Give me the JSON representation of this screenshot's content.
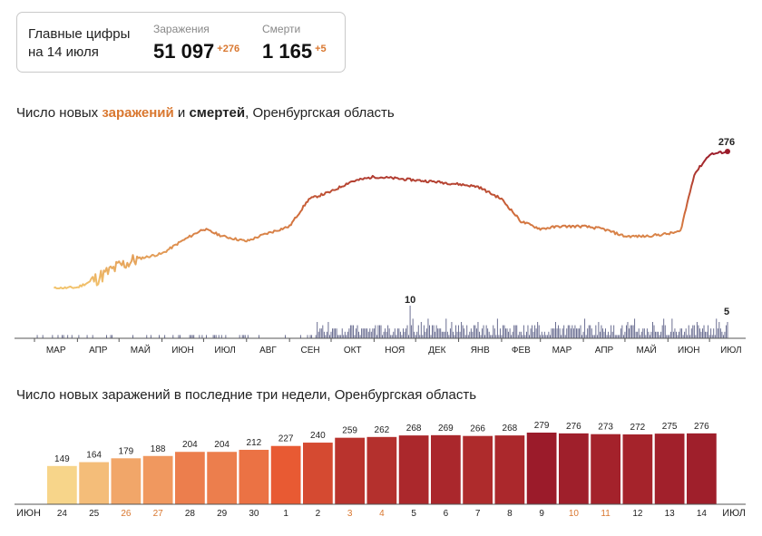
{
  "summary": {
    "label_line1": "Главные цифры",
    "label_line2": "на 14 июля",
    "infections": {
      "caption": "Заражения",
      "value": "51 097",
      "delta": "+276"
    },
    "deaths": {
      "caption": "Смерти",
      "value": "1 165",
      "delta": "+5"
    }
  },
  "colors": {
    "infection_accent": "#d9772f",
    "death_bars": "#5b5f86",
    "bar_gradient_low": "#f7d58a",
    "bar_gradient_mid": "#e85a33",
    "bar_gradient_high": "#9b1b2a",
    "weekend_label": "#d9772f"
  },
  "chart1": {
    "title_prefix": "Число новых ",
    "title_infections": "заражений",
    "title_and": " и ",
    "title_deaths": "смертей",
    "title_suffix": ", Оренбургская область"
  },
  "chart2": {
    "title": "Число новых заражений в последние три недели, Оренбургская область"
  },
  "chart_data": [
    {
      "type": "line",
      "series": [
        {
          "name": "заражений",
          "x": [
            "2020-03-15",
            "2020-04-01",
            "2020-04-15",
            "2020-05-01",
            "2020-05-15",
            "2020-06-01",
            "2020-06-15",
            "2020-07-01",
            "2020-07-15",
            "2020-08-01",
            "2020-08-15",
            "2020-09-01",
            "2020-09-15",
            "2020-10-01",
            "2020-10-15",
            "2020-11-01",
            "2020-11-15",
            "2020-12-01",
            "2020-12-15",
            "2021-01-01",
            "2021-01-15",
            "2021-02-01",
            "2021-02-15",
            "2021-03-01",
            "2021-03-15",
            "2021-04-01",
            "2021-04-15",
            "2021-05-01",
            "2021-05-15",
            "2021-06-01",
            "2021-06-10",
            "2021-06-20",
            "2021-07-01",
            "2021-07-14"
          ],
          "values": [
            0,
            2,
            20,
            45,
            60,
            70,
            95,
            120,
            105,
            95,
            110,
            125,
            180,
            195,
            215,
            225,
            222,
            218,
            215,
            210,
            205,
            180,
            135,
            120,
            125,
            125,
            120,
            105,
            105,
            110,
            115,
            230,
            270,
            276
          ]
        },
        {
          "name": "смертей",
          "type": "bar",
          "x_range": [
            "2020-03-01",
            "2021-07-14"
          ],
          "typical_range": [
            1,
            4
          ],
          "max_value": 10,
          "last_value": 5
        }
      ],
      "annotations": {
        "last_infections": "276",
        "max_deaths": "10",
        "last_deaths": "5"
      },
      "x_tick_labels": [
        "МАР",
        "АПР",
        "МАЙ",
        "ИЮН",
        "ИЮЛ",
        "АВГ",
        "СЕН",
        "ОКТ",
        "НОЯ",
        "ДЕК",
        "ЯНВ",
        "ФЕВ",
        "МАР",
        "АПР",
        "МАЙ",
        "ИЮН",
        "ИЮЛ"
      ],
      "grid": false
    },
    {
      "type": "bar",
      "x_label_start": "ИЮН",
      "x_label_end": "ИЮЛ",
      "categories": [
        "24",
        "25",
        "26",
        "27",
        "28",
        "29",
        "30",
        "1",
        "2",
        "3",
        "4",
        "5",
        "6",
        "7",
        "8",
        "9",
        "10",
        "11",
        "12",
        "13",
        "14"
      ],
      "values": [
        149,
        164,
        179,
        188,
        204,
        204,
        212,
        227,
        240,
        259,
        262,
        268,
        269,
        266,
        268,
        279,
        276,
        273,
        272,
        275,
        276
      ],
      "weekend_categories": [
        "26",
        "27",
        "3",
        "4",
        "10",
        "11"
      ],
      "value_labels": [
        "149",
        "164",
        "179",
        "188",
        "204",
        "204",
        "212",
        "227",
        "240",
        "259",
        "262",
        "268",
        "269",
        "266",
        "268",
        "279",
        "276",
        "273",
        "272",
        "275",
        "276"
      ],
      "grid": false
    }
  ]
}
